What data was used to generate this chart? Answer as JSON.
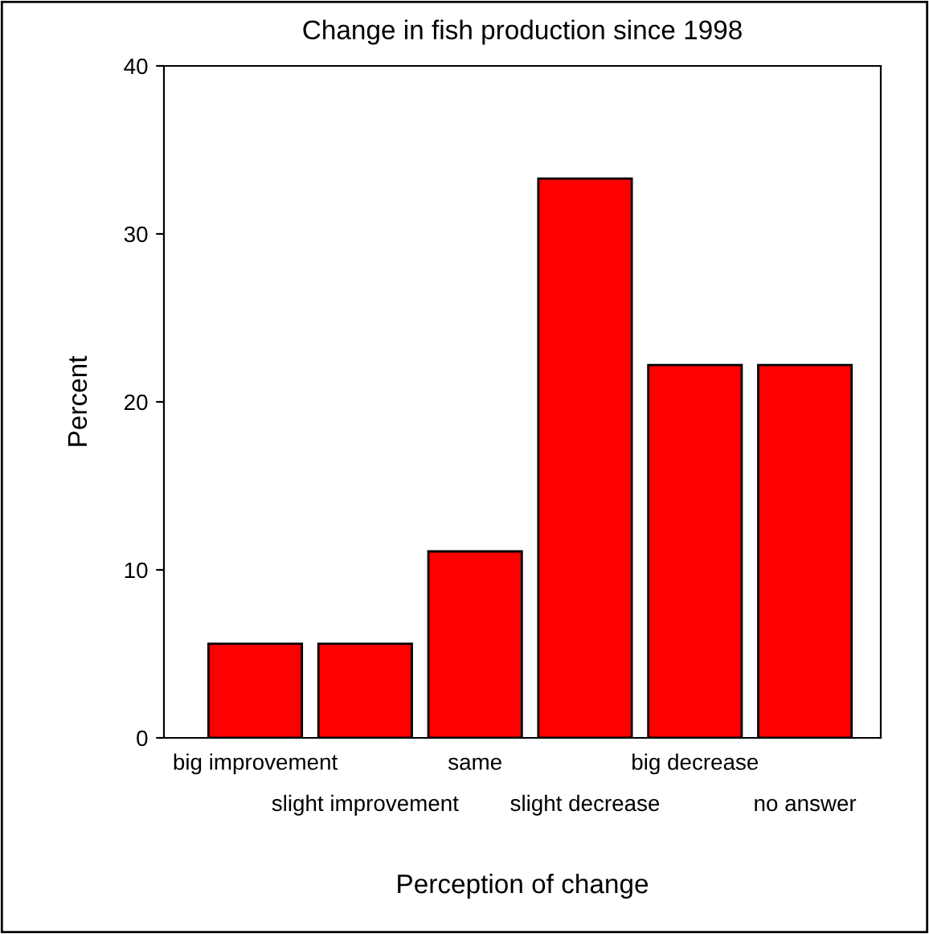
{
  "chart_data": {
    "type": "bar",
    "title": "Change in fish production since 1998",
    "xlabel": "Perception of change",
    "ylabel": "Percent",
    "categories": [
      "big improvement",
      "slight improvement",
      "same",
      "slight decrease",
      "big decrease",
      "no answer"
    ],
    "values": [
      5.6,
      5.6,
      11.1,
      33.3,
      22.2,
      22.2
    ],
    "color": "#ff0000",
    "ylim": [
      0,
      40
    ],
    "yticks": [
      0,
      10,
      20,
      30,
      40
    ],
    "grid": false,
    "legend": false
  }
}
